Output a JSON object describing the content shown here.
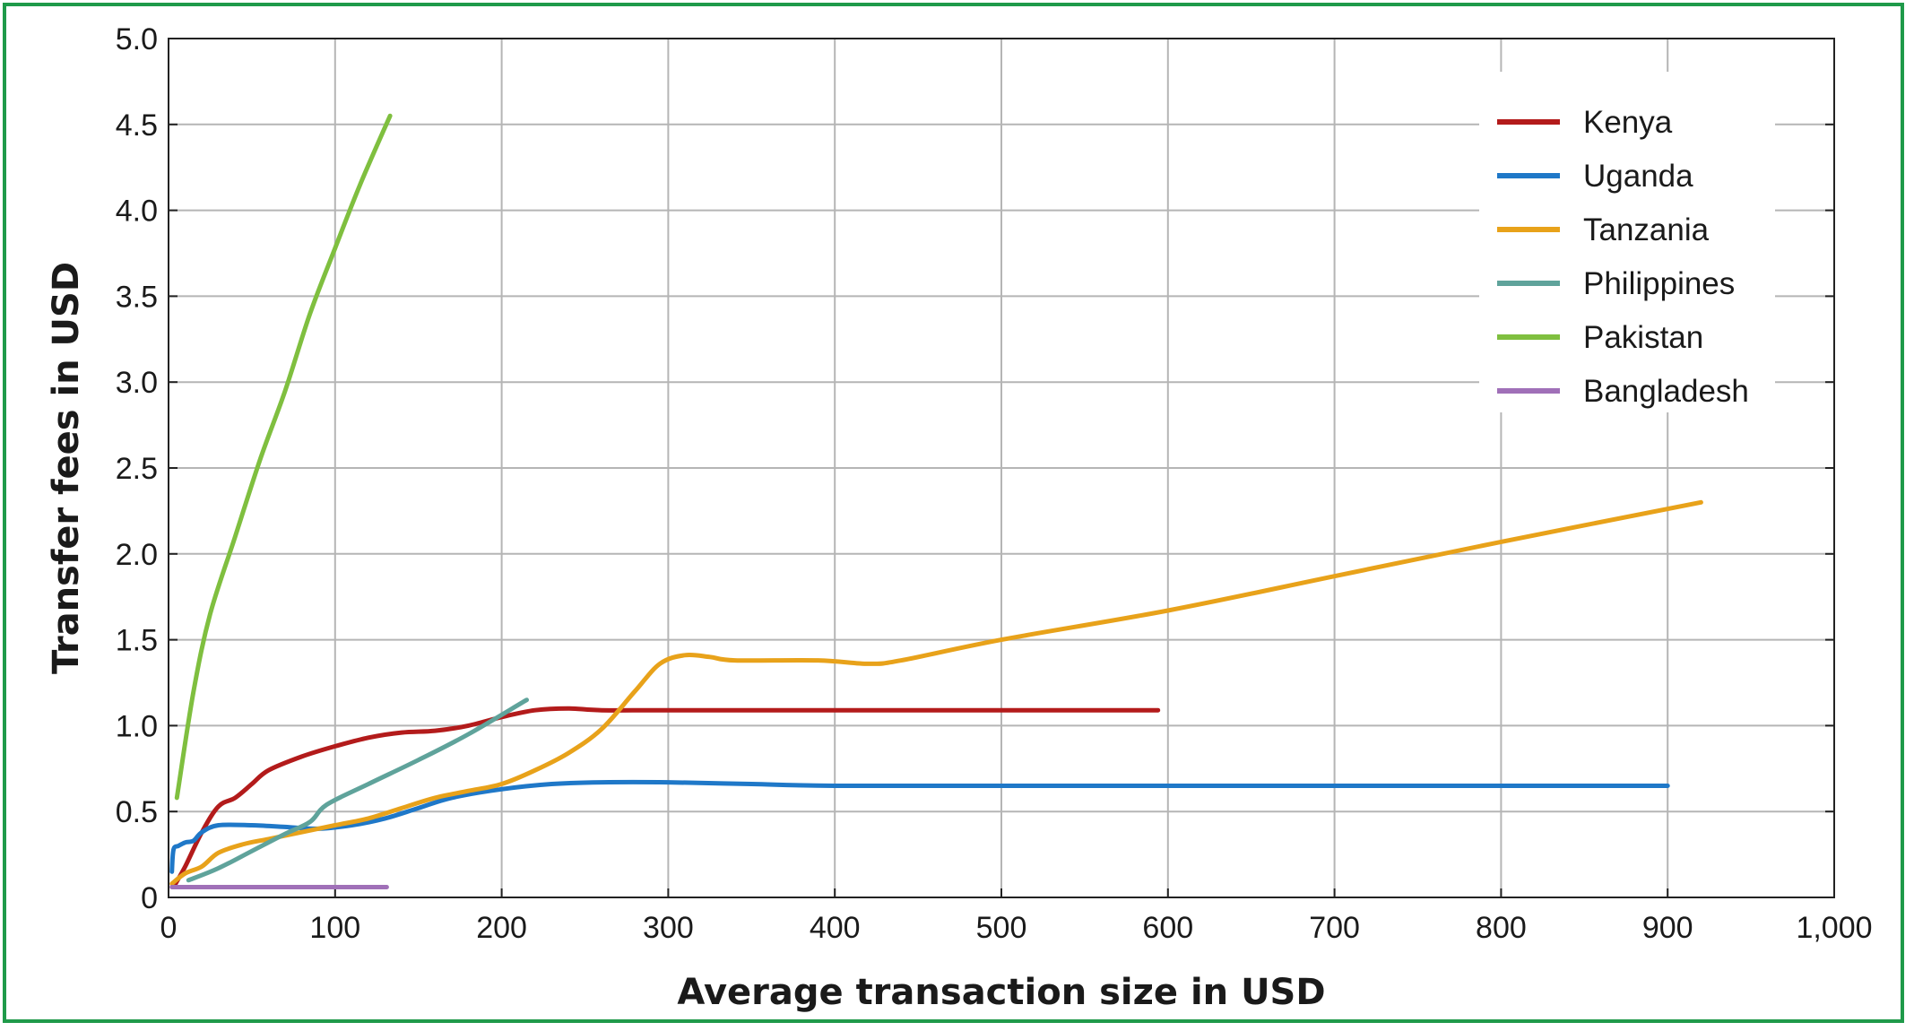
{
  "chart_data": {
    "type": "line",
    "title": "",
    "xlabel": "Average transaction size in USD",
    "ylabel": "Transfer fees in USD",
    "xlim": [
      0,
      1000
    ],
    "ylim": [
      0,
      5.0
    ],
    "x_ticks": [
      0,
      100,
      200,
      300,
      400,
      500,
      600,
      700,
      800,
      900,
      1000
    ],
    "x_tick_labels": [
      "0",
      "100",
      "200",
      "300",
      "400",
      "500",
      "600",
      "700",
      "800",
      "900",
      "1,000"
    ],
    "y_ticks": [
      0,
      0.5,
      1.0,
      1.5,
      2.0,
      2.5,
      3.0,
      3.5,
      4.0,
      4.5,
      5.0
    ],
    "y_tick_labels": [
      "0",
      "0.5",
      "1.0",
      "1.5",
      "2.0",
      "2.5",
      "3.0",
      "3.5",
      "4.0",
      "4.5",
      "5.0"
    ],
    "grid": true,
    "legend_position": "top-right",
    "series": [
      {
        "name": "Kenya",
        "color": "#b31b1b",
        "points": [
          [
            3,
            0.06
          ],
          [
            10,
            0.18
          ],
          [
            20,
            0.38
          ],
          [
            30,
            0.53
          ],
          [
            40,
            0.58
          ],
          [
            50,
            0.66
          ],
          [
            60,
            0.74
          ],
          [
            80,
            0.82
          ],
          [
            100,
            0.88
          ],
          [
            120,
            0.93
          ],
          [
            140,
            0.96
          ],
          [
            160,
            0.97
          ],
          [
            180,
            1.0
          ],
          [
            200,
            1.05
          ],
          [
            220,
            1.09
          ],
          [
            240,
            1.1
          ],
          [
            260,
            1.09
          ],
          [
            300,
            1.09
          ],
          [
            400,
            1.09
          ],
          [
            500,
            1.09
          ],
          [
            594,
            1.09
          ]
        ]
      },
      {
        "name": "Uganda",
        "color": "#1f78c8",
        "points": [
          [
            2,
            0.15
          ],
          [
            3,
            0.28
          ],
          [
            6,
            0.3
          ],
          [
            10,
            0.32
          ],
          [
            15,
            0.33
          ],
          [
            20,
            0.38
          ],
          [
            30,
            0.42
          ],
          [
            50,
            0.42
          ],
          [
            70,
            0.41
          ],
          [
            90,
            0.4
          ],
          [
            110,
            0.42
          ],
          [
            130,
            0.46
          ],
          [
            150,
            0.52
          ],
          [
            170,
            0.58
          ],
          [
            200,
            0.63
          ],
          [
            230,
            0.66
          ],
          [
            260,
            0.67
          ],
          [
            300,
            0.67
          ],
          [
            350,
            0.66
          ],
          [
            400,
            0.65
          ],
          [
            500,
            0.65
          ],
          [
            700,
            0.65
          ],
          [
            900,
            0.65
          ]
        ]
      },
      {
        "name": "Tanzania",
        "color": "#e8a21a",
        "points": [
          [
            2,
            0.08
          ],
          [
            10,
            0.14
          ],
          [
            20,
            0.18
          ],
          [
            30,
            0.26
          ],
          [
            45,
            0.31
          ],
          [
            60,
            0.34
          ],
          [
            80,
            0.38
          ],
          [
            100,
            0.42
          ],
          [
            120,
            0.46
          ],
          [
            140,
            0.52
          ],
          [
            160,
            0.58
          ],
          [
            180,
            0.62
          ],
          [
            200,
            0.66
          ],
          [
            220,
            0.74
          ],
          [
            240,
            0.84
          ],
          [
            260,
            0.98
          ],
          [
            280,
            1.2
          ],
          [
            295,
            1.36
          ],
          [
            310,
            1.41
          ],
          [
            325,
            1.4
          ],
          [
            340,
            1.38
          ],
          [
            390,
            1.38
          ],
          [
            420,
            1.36
          ],
          [
            440,
            1.38
          ],
          [
            500,
            1.5
          ],
          [
            600,
            1.67
          ],
          [
            700,
            1.87
          ],
          [
            800,
            2.07
          ],
          [
            920,
            2.3
          ]
        ]
      },
      {
        "name": "Philippines",
        "color": "#5fa39b",
        "points": [
          [
            12,
            0.1
          ],
          [
            30,
            0.17
          ],
          [
            50,
            0.27
          ],
          [
            70,
            0.37
          ],
          [
            85,
            0.44
          ],
          [
            95,
            0.54
          ],
          [
            120,
            0.66
          ],
          [
            150,
            0.8
          ],
          [
            180,
            0.95
          ],
          [
            215,
            1.15
          ]
        ]
      },
      {
        "name": "Pakistan",
        "color": "#7fbf3f",
        "points": [
          [
            5,
            0.58
          ],
          [
            15,
            1.2
          ],
          [
            25,
            1.65
          ],
          [
            40,
            2.1
          ],
          [
            55,
            2.55
          ],
          [
            70,
            2.95
          ],
          [
            85,
            3.4
          ],
          [
            100,
            3.78
          ],
          [
            115,
            4.15
          ],
          [
            133,
            4.55
          ]
        ]
      },
      {
        "name": "Bangladesh",
        "color": "#a070b8",
        "points": [
          [
            2,
            0.06
          ],
          [
            131,
            0.06
          ]
        ]
      }
    ]
  }
}
